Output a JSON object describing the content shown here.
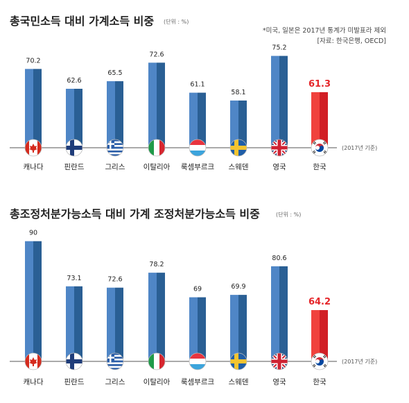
{
  "chart_data": [
    {
      "type": "bar",
      "title": "총국민소득 대비 가계소득 비중",
      "unit": "(단위 : %)",
      "notes": [
        "*미국, 일본은 2017년 통계가 미발표라 제외",
        "[자료: 한국은행, OECD]"
      ],
      "base_note": "(2017년 기준)",
      "categories": [
        "캐나다",
        "핀란드",
        "그리스",
        "이탈리아",
        "룩셈부르크",
        "스웨덴",
        "영국",
        "한국"
      ],
      "flag_icons": [
        "canada-flag-icon",
        "finland-flag-icon",
        "greece-flag-icon",
        "italy-flag-icon",
        "luxembourg-flag-icon",
        "sweden-flag-icon",
        "uk-flag-icon",
        "korea-flag-icon"
      ],
      "values": [
        70.2,
        62.6,
        65.5,
        72.6,
        61.1,
        58.1,
        75.2,
        61.3
      ],
      "value_labels": [
        "70.2",
        "62.6",
        "65.5",
        "72.6",
        "61.1",
        "58.1",
        "75.2",
        "61.3"
      ],
      "highlight_index": 7,
      "ylim": [
        40,
        82
      ]
    },
    {
      "type": "bar",
      "title": "총조정처분가능소득 대비 가계 조정처분가능소득 비중",
      "unit": "(단위 : %)",
      "base_note": "(2017년 기준)",
      "categories": [
        "캐나다",
        "핀란드",
        "그리스",
        "이탈리아",
        "룩셈부르크",
        "스웨덴",
        "영국",
        "한국"
      ],
      "flag_icons": [
        "canada-flag-icon",
        "finland-flag-icon",
        "greece-flag-icon",
        "italy-flag-icon",
        "luxembourg-flag-icon",
        "sweden-flag-icon",
        "uk-flag-icon",
        "korea-flag-icon"
      ],
      "values": [
        90,
        73.1,
        72.6,
        78.2,
        69,
        69.9,
        80.6,
        64.2
      ],
      "value_labels": [
        "90",
        "73.1",
        "72.6",
        "78.2",
        "69",
        "69.9",
        "80.6",
        "64.2"
      ],
      "highlight_index": 7,
      "ylim": [
        45,
        92
      ]
    }
  ],
  "colors": {
    "bar_blue_left": "#4f86c6",
    "bar_blue_right": "#2a5f94",
    "bar_red_left": "#f0423d",
    "bar_red_right": "#d11f25",
    "highlight_text": "#e5262a",
    "baseline": "#555555"
  }
}
